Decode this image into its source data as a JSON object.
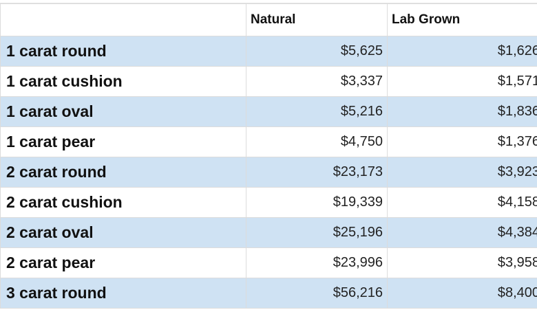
{
  "table": {
    "headers": [
      "",
      "Natural",
      "Lab Grown"
    ],
    "shade_color": "#cfe2f3",
    "rows": [
      {
        "label": "1 carat round",
        "natural": "$5,625",
        "lab": "$1,626",
        "shaded": true
      },
      {
        "label": "1 carat cushion",
        "natural": "$3,337",
        "lab": "$1,571",
        "shaded": false
      },
      {
        "label": "1 carat oval",
        "natural": "$5,216",
        "lab": "$1,836",
        "shaded": true
      },
      {
        "label": "1 carat pear",
        "natural": "$4,750",
        "lab": "$1,376",
        "shaded": false
      },
      {
        "label": "2 carat round",
        "natural": "$23,173",
        "lab": "$3,923",
        "shaded": true
      },
      {
        "label": "2 carat cushion",
        "natural": "$19,339",
        "lab": "$4,158",
        "shaded": false
      },
      {
        "label": "2 carat oval",
        "natural": "$25,196",
        "lab": "$4,384",
        "shaded": true
      },
      {
        "label": "2 carat pear",
        "natural": "$23,996",
        "lab": "$3,958",
        "shaded": false
      },
      {
        "label": "3 carat round",
        "natural": "$56,216",
        "lab": "$8,400",
        "shaded": true
      }
    ]
  }
}
